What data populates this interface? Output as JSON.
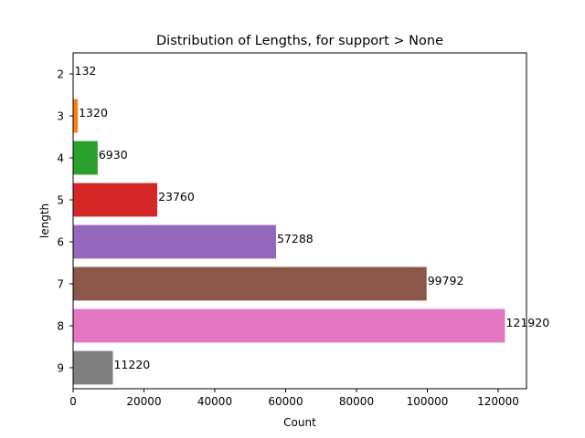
{
  "chart_data": {
    "type": "bar",
    "orientation": "horizontal",
    "title": "Distribution of Lengths, for support > None",
    "xlabel": "Count",
    "ylabel": "length",
    "categories": [
      "2",
      "3",
      "4",
      "5",
      "6",
      "7",
      "8",
      "9"
    ],
    "values": [
      132,
      1320,
      6930,
      23760,
      57288,
      99792,
      121920,
      11220
    ],
    "colors": [
      "#1f77b4",
      "#ff7f0e",
      "#2ca02c",
      "#d62728",
      "#9467bd",
      "#8c564b",
      "#e377c2",
      "#7f7f7f"
    ],
    "xlim": [
      0,
      128000
    ],
    "xticks": [
      0,
      20000,
      40000,
      60000,
      80000,
      100000,
      120000
    ],
    "xtick_labels": [
      "0",
      "20000",
      "40000",
      "60000",
      "80000",
      "100000",
      "120000"
    ],
    "grid": false,
    "data_labels": [
      "132",
      "1320",
      "6930",
      "23760",
      "57288",
      "99792",
      "121920",
      "11220"
    ]
  }
}
